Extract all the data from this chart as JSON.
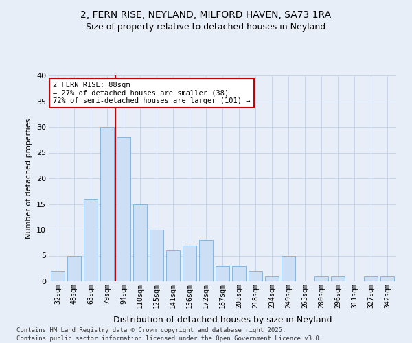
{
  "title_line1": "2, FERN RISE, NEYLAND, MILFORD HAVEN, SA73 1RA",
  "title_line2": "Size of property relative to detached houses in Neyland",
  "xlabel": "Distribution of detached houses by size in Neyland",
  "ylabel": "Number of detached properties",
  "bar_color": "#ccdff5",
  "bar_edge_color": "#7aadd4",
  "grid_color": "#c8d4e8",
  "bg_color": "#e8eef8",
  "fig_color": "#e8eef8",
  "categories": [
    "32sqm",
    "48sqm",
    "63sqm",
    "79sqm",
    "94sqm",
    "110sqm",
    "125sqm",
    "141sqm",
    "156sqm",
    "172sqm",
    "187sqm",
    "203sqm",
    "218sqm",
    "234sqm",
    "249sqm",
    "265sqm",
    "280sqm",
    "296sqm",
    "311sqm",
    "327sqm",
    "342sqm"
  ],
  "values": [
    2,
    5,
    16,
    30,
    28,
    15,
    10,
    6,
    7,
    8,
    3,
    3,
    2,
    1,
    5,
    0,
    1,
    1,
    0,
    1,
    1
  ],
  "vline_x": 3.5,
  "vline_color": "#cc0000",
  "annotation_text": "2 FERN RISE: 88sqm\n← 27% of detached houses are smaller (38)\n72% of semi-detached houses are larger (101) →",
  "annotation_box_color": "#ffffff",
  "annotation_box_edge": "#cc0000",
  "ylim": [
    0,
    40
  ],
  "yticks": [
    0,
    5,
    10,
    15,
    20,
    25,
    30,
    35,
    40
  ],
  "footer_line1": "Contains HM Land Registry data © Crown copyright and database right 2025.",
  "footer_line2": "Contains public sector information licensed under the Open Government Licence v3.0."
}
